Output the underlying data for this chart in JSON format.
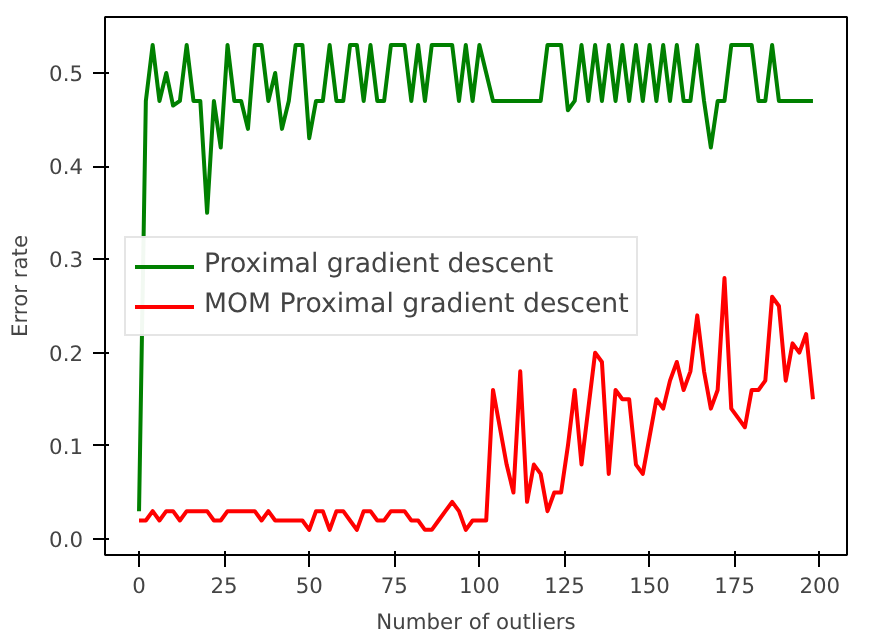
{
  "chart_data": {
    "type": "line",
    "xlabel": "Number of outliers",
    "ylabel": "Error rate",
    "legend": "center left",
    "grid": false,
    "line_style": "solid",
    "marker": "none",
    "x": [
      0,
      2,
      4,
      6,
      8,
      10,
      12,
      14,
      16,
      18,
      20,
      22,
      24,
      26,
      28,
      30,
      32,
      34,
      36,
      38,
      40,
      42,
      44,
      46,
      48,
      50,
      52,
      54,
      56,
      58,
      60,
      62,
      64,
      66,
      68,
      70,
      72,
      74,
      76,
      78,
      80,
      82,
      84,
      86,
      88,
      90,
      92,
      94,
      96,
      98,
      100,
      102,
      104,
      106,
      108,
      110,
      112,
      114,
      116,
      118,
      120,
      122,
      124,
      126,
      128,
      130,
      132,
      134,
      136,
      138,
      140,
      142,
      144,
      146,
      148,
      150,
      152,
      154,
      156,
      158,
      160,
      162,
      164,
      166,
      168,
      170,
      172,
      174,
      176,
      178,
      180,
      182,
      184,
      186,
      188,
      190,
      192,
      194,
      196,
      198
    ],
    "xlim": [
      -10,
      208
    ],
    "ylim": [
      -0.017,
      0.56
    ],
    "xticks": [
      0,
      25,
      50,
      75,
      100,
      125,
      150,
      175,
      200
    ],
    "yticks": [
      {
        "value": 0,
        "label": "0.0"
      },
      0.1,
      0.2,
      0.3,
      0.4,
      0.5
    ],
    "series": [
      {
        "name": "Proximal gradient descent",
        "color": "#008000",
        "values": [
          0.03,
          0.47,
          0.53,
          0.47,
          0.5,
          0.465,
          0.47,
          0.53,
          0.47,
          0.47,
          0.35,
          0.47,
          0.42,
          0.53,
          0.47,
          0.47,
          0.44,
          0.53,
          0.53,
          0.47,
          0.5,
          0.44,
          0.47,
          0.53,
          0.53,
          0.43,
          0.47,
          0.47,
          0.53,
          0.47,
          0.47,
          0.53,
          0.53,
          0.47,
          0.53,
          0.47,
          0.47,
          0.53,
          0.53,
          0.53,
          0.47,
          0.53,
          0.47,
          0.53,
          0.53,
          0.53,
          0.53,
          0.47,
          0.53,
          0.47,
          0.53,
          0.5,
          0.47,
          0.47,
          0.47,
          0.47,
          0.47,
          0.47,
          0.47,
          0.47,
          0.53,
          0.53,
          0.53,
          0.46,
          0.47,
          0.53,
          0.47,
          0.53,
          0.47,
          0.53,
          0.47,
          0.53,
          0.47,
          0.53,
          0.47,
          0.53,
          0.47,
          0.53,
          0.47,
          0.53,
          0.47,
          0.47,
          0.53,
          0.47,
          0.42,
          0.47,
          0.47,
          0.53,
          0.53,
          0.53,
          0.53,
          0.47,
          0.47,
          0.53,
          0.47,
          0.47,
          0.47,
          0.47,
          0.47,
          0.47
        ]
      },
      {
        "name": "MOM Proximal gradient descent",
        "color": "#ff0000",
        "values": [
          0.02,
          0.02,
          0.03,
          0.02,
          0.03,
          0.03,
          0.02,
          0.03,
          0.03,
          0.03,
          0.03,
          0.02,
          0.02,
          0.03,
          0.03,
          0.03,
          0.03,
          0.03,
          0.02,
          0.03,
          0.02,
          0.02,
          0.02,
          0.02,
          0.02,
          0.01,
          0.03,
          0.03,
          0.01,
          0.03,
          0.03,
          0.02,
          0.01,
          0.03,
          0.03,
          0.02,
          0.02,
          0.03,
          0.03,
          0.03,
          0.02,
          0.02,
          0.01,
          0.01,
          0.02,
          0.03,
          0.04,
          0.03,
          0.01,
          0.02,
          0.02,
          0.02,
          0.16,
          0.12,
          0.08,
          0.05,
          0.18,
          0.04,
          0.08,
          0.07,
          0.03,
          0.05,
          0.05,
          0.1,
          0.16,
          0.08,
          0.14,
          0.2,
          0.19,
          0.07,
          0.16,
          0.15,
          0.15,
          0.08,
          0.07,
          0.11,
          0.15,
          0.14,
          0.17,
          0.19,
          0.16,
          0.18,
          0.24,
          0.18,
          0.14,
          0.16,
          0.28,
          0.14,
          0.13,
          0.12,
          0.16,
          0.16,
          0.17,
          0.26,
          0.25,
          0.17,
          0.21,
          0.2,
          0.22,
          0.15
        ]
      }
    ]
  }
}
